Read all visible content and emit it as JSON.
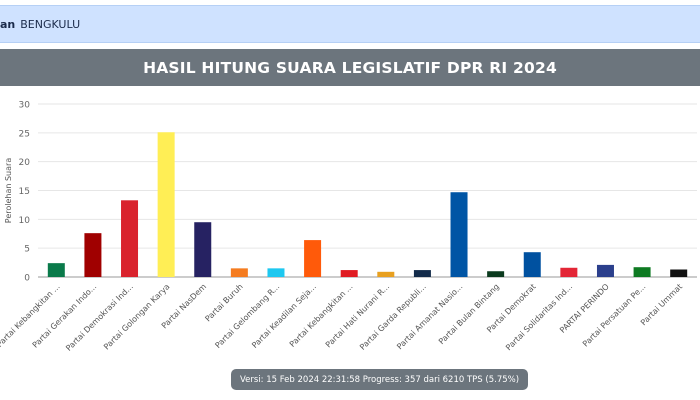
{
  "topbar": {
    "prefix": "an",
    "region": "BENGKULU"
  },
  "title": "HASIL HITUNG SUARA LEGISLATIF DPR RI 2024",
  "footer": "Versi: 15 Feb 2024 22:31:58 Progress: 357 dari 6210 TPS (5.75%)",
  "chart_data": {
    "type": "bar",
    "title": "HASIL HITUNG SUARA LEGISLATIF DPR RI 2024",
    "xlabel": "",
    "ylabel": "Perolehan Suara",
    "ylim": [
      0,
      30
    ],
    "yticks": [
      0,
      5,
      10,
      15,
      20,
      25,
      30
    ],
    "grid": true,
    "categories": [
      "Partai Kebangkitan ...",
      "Partai Gerakan Indo...",
      "Partai Demokrasi Ind...",
      "Partai Golongan Karya",
      "Partai NasDem",
      "Partai Buruh",
      "Partai Gelombang R...",
      "Partai Keadilan Seja...",
      "Partai Kebangkitan ...",
      "Partai Hati Nurani R...",
      "Partai Garda Republi...",
      "Partai Amanat Nasio...",
      "Partai Bulan Bintang",
      "Partai Demokrat",
      "Partai Solidaritas Ind...",
      "PARTAI PERINDO",
      "Partai Persatuan Pe...",
      "Partai Ummat"
    ],
    "values": [
      2.4,
      7.6,
      13.3,
      25.1,
      9.5,
      1.5,
      1.5,
      6.4,
      1.2,
      0.9,
      1.2,
      14.7,
      1.0,
      4.3,
      1.6,
      2.1,
      1.7,
      1.3
    ],
    "colors": [
      "#0a7a4a",
      "#a00000",
      "#d9232d",
      "#ffee55",
      "#262262",
      "#f57c20",
      "#1ec8f0",
      "#ff5a0a",
      "#e01b22",
      "#e8a020",
      "#132b4a",
      "#0055a5",
      "#0b3a1e",
      "#0051a0",
      "#e32636",
      "#2b3f8c",
      "#0e7a22",
      "#111111"
    ]
  }
}
